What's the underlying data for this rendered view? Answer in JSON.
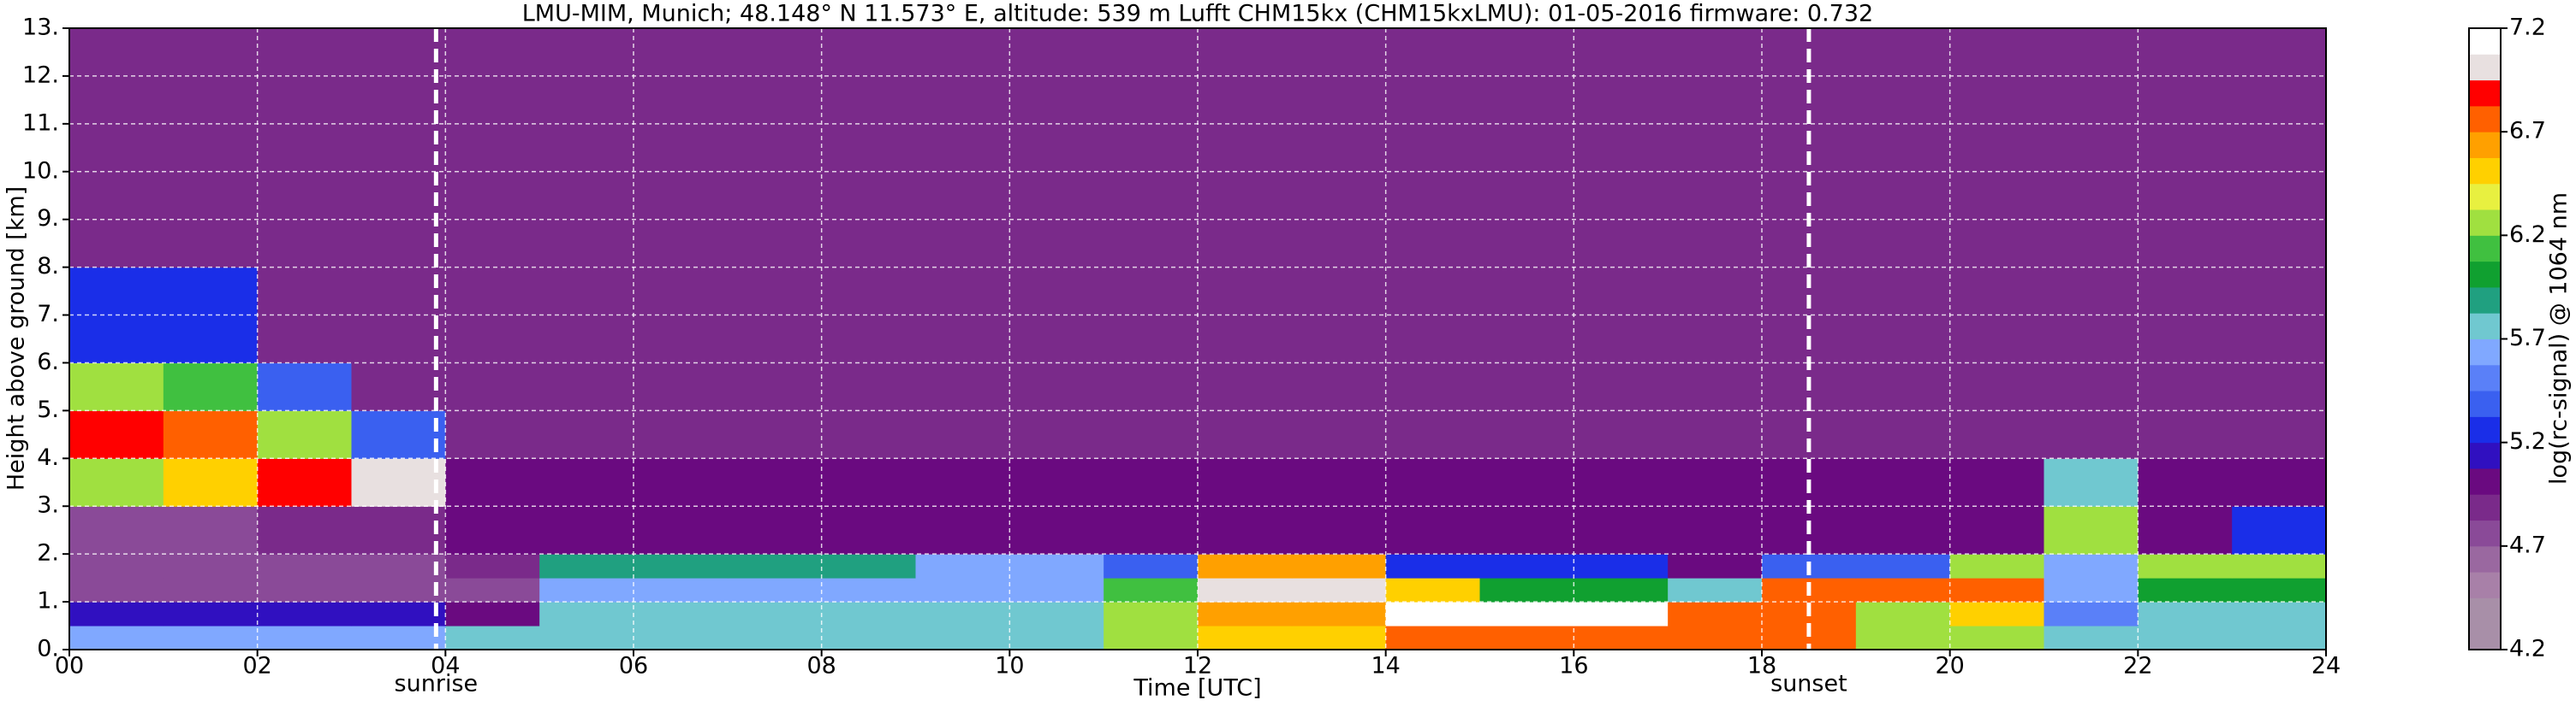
{
  "chart_data": {
    "type": "heatmap",
    "title": "LMU-MIM, Munich; 48.148° N 11.573° E, altitude: 539 m    Lufft CHM15kx (CHM15kxLMU): 01-05-2016    firmware: 0.732",
    "xlabel": "Time [UTC]",
    "ylabel": "Height above ground [km]",
    "xlim": [
      0,
      24
    ],
    "ylim": [
      0,
      13
    ],
    "xticks": [
      {
        "value": 0,
        "label": "00"
      },
      {
        "value": 2,
        "label": "02"
      },
      {
        "value": 4,
        "label": "04"
      },
      {
        "value": 6,
        "label": "06"
      },
      {
        "value": 8,
        "label": "08"
      },
      {
        "value": 10,
        "label": "10"
      },
      12,
      14,
      16,
      18,
      20,
      22,
      24
    ],
    "yticks": [
      {
        "value": 0,
        "label": "0."
      },
      {
        "value": 1,
        "label": "1."
      },
      {
        "value": 2,
        "label": "2."
      },
      {
        "value": 3,
        "label": "3."
      },
      {
        "value": 4,
        "label": "4."
      },
      {
        "value": 5,
        "label": "5."
      },
      {
        "value": 6,
        "label": "6."
      },
      {
        "value": 7,
        "label": "7."
      },
      {
        "value": 8,
        "label": "8."
      },
      {
        "value": 9,
        "label": "9."
      },
      {
        "value": 10,
        "label": "10."
      },
      {
        "value": 11,
        "label": "11."
      },
      {
        "value": 12,
        "label": "12."
      },
      {
        "value": 13,
        "label": "13."
      }
    ],
    "grid": true,
    "x_edges": [
      0,
      1,
      2,
      3,
      4,
      5,
      6,
      7,
      8,
      9,
      10,
      11,
      12,
      13,
      14,
      15,
      16,
      17,
      18,
      19,
      20,
      21,
      22,
      23,
      24
    ],
    "y_edges": [
      0,
      0.5,
      1,
      1.5,
      2,
      3,
      4,
      5,
      6,
      8,
      10,
      13
    ],
    "z": [
      [
        5.6,
        5.6,
        5.6,
        5.6,
        5.7,
        5.7,
        5.7,
        5.7,
        5.7,
        5.7,
        5.7,
        6.2,
        6.5,
        6.5,
        6.8,
        6.8,
        6.8,
        6.8,
        6.7,
        6.3,
        6.3,
        5.8,
        5.8,
        5.8
      ],
      [
        5.1,
        5.1,
        5.1,
        5.1,
        5.0,
        5.8,
        5.8,
        5.8,
        5.8,
        5.8,
        5.8,
        6.3,
        6.6,
        6.6,
        7.1,
        7.1,
        7.1,
        6.8,
        6.7,
        6.2,
        6.5,
        5.5,
        5.7,
        5.7
      ],
      [
        4.8,
        4.8,
        4.8,
        4.8,
        4.8,
        5.6,
        5.6,
        5.6,
        5.6,
        5.6,
        5.6,
        6.1,
        7.0,
        7.0,
        6.5,
        6.0,
        6.0,
        5.7,
        6.8,
        6.8,
        6.8,
        5.6,
        6.0,
        6.0
      ],
      [
        4.8,
        4.8,
        4.8,
        4.8,
        4.9,
        5.9,
        5.9,
        5.9,
        5.9,
        5.6,
        5.6,
        5.4,
        6.6,
        6.6,
        5.2,
        5.2,
        5.2,
        5.0,
        5.4,
        5.4,
        6.2,
        5.6,
        6.2,
        6.2
      ],
      [
        4.8,
        4.8,
        4.9,
        4.9,
        5.0,
        5.0,
        5.0,
        5.0,
        5.0,
        5.0,
        5.0,
        5.0,
        5.0,
        5.0,
        5.0,
        5.0,
        5.0,
        5.0,
        5.0,
        5.0,
        5.0,
        6.3,
        5.0,
        5.3
      ],
      [
        6.3,
        6.5,
        6.9,
        7.0,
        5.0,
        5.0,
        5.0,
        5.0,
        5.0,
        5.0,
        5.0,
        5.0,
        5.0,
        5.0,
        5.0,
        5.0,
        5.0,
        5.0,
        5.0,
        5.0,
        5.0,
        5.8,
        5.0,
        5.0
      ],
      [
        6.9,
        6.8,
        6.2,
        5.4,
        4.9,
        4.9,
        4.9,
        4.9,
        4.9,
        4.9,
        4.9,
        4.9,
        4.9,
        4.9,
        4.9,
        4.9,
        4.9,
        4.9,
        4.9,
        4.9,
        4.9,
        4.9,
        4.9,
        4.9
      ],
      [
        6.2,
        6.1,
        5.4,
        4.9,
        4.9,
        4.9,
        4.9,
        4.9,
        4.9,
        4.9,
        4.9,
        4.9,
        4.9,
        4.9,
        4.9,
        4.9,
        4.9,
        4.9,
        4.9,
        4.9,
        4.9,
        4.9,
        4.9,
        4.9
      ],
      [
        5.2,
        5.3,
        4.9,
        4.9,
        4.9,
        4.9,
        4.9,
        4.9,
        4.9,
        4.9,
        4.9,
        4.9,
        4.9,
        4.9,
        4.9,
        4.9,
        4.9,
        4.9,
        4.9,
        4.9,
        4.9,
        4.9,
        4.9,
        4.9
      ],
      [
        4.9,
        4.9,
        4.9,
        4.9,
        4.9,
        4.9,
        4.9,
        4.9,
        4.9,
        4.9,
        4.9,
        4.9,
        4.9,
        4.9,
        4.9,
        4.9,
        4.9,
        4.9,
        4.9,
        4.9,
        4.9,
        4.9,
        4.9,
        4.9
      ],
      [
        4.9,
        4.9,
        4.9,
        4.9,
        4.9,
        4.9,
        4.9,
        4.9,
        4.9,
        4.9,
        4.9,
        4.9,
        4.9,
        4.9,
        4.9,
        4.9,
        4.9,
        4.9,
        4.9,
        4.9,
        4.9,
        4.9,
        4.9,
        4.9
      ]
    ],
    "colorbar": {
      "label": "log(rc-signal) @ 1064 nm",
      "clim": [
        4.2,
        7.2
      ],
      "ticks": [
        4.2,
        4.7,
        5.2,
        5.7,
        6.2,
        6.7,
        7.2
      ],
      "colormap": [
        "#a88fa8",
        "#a88fa8",
        "#a880a8",
        "#9a68a0",
        "#8a4a98",
        "#7a2a8a",
        "#6a0a80",
        "#3010c0",
        "#1a2ee8",
        "#3a60f0",
        "#5a80f8",
        "#80a8ff",
        "#70c8d0",
        "#20a080",
        "#10a030",
        "#40c040",
        "#a0e040",
        "#e8f040",
        "#ffd000",
        "#ffa000",
        "#ff6000",
        "#ff0000",
        "#e8e0e0",
        "#ffffff"
      ]
    },
    "annotations": [
      {
        "label": "sunrise",
        "x": 3.9
      },
      {
        "label": "sunset",
        "x": 18.5
      }
    ]
  }
}
